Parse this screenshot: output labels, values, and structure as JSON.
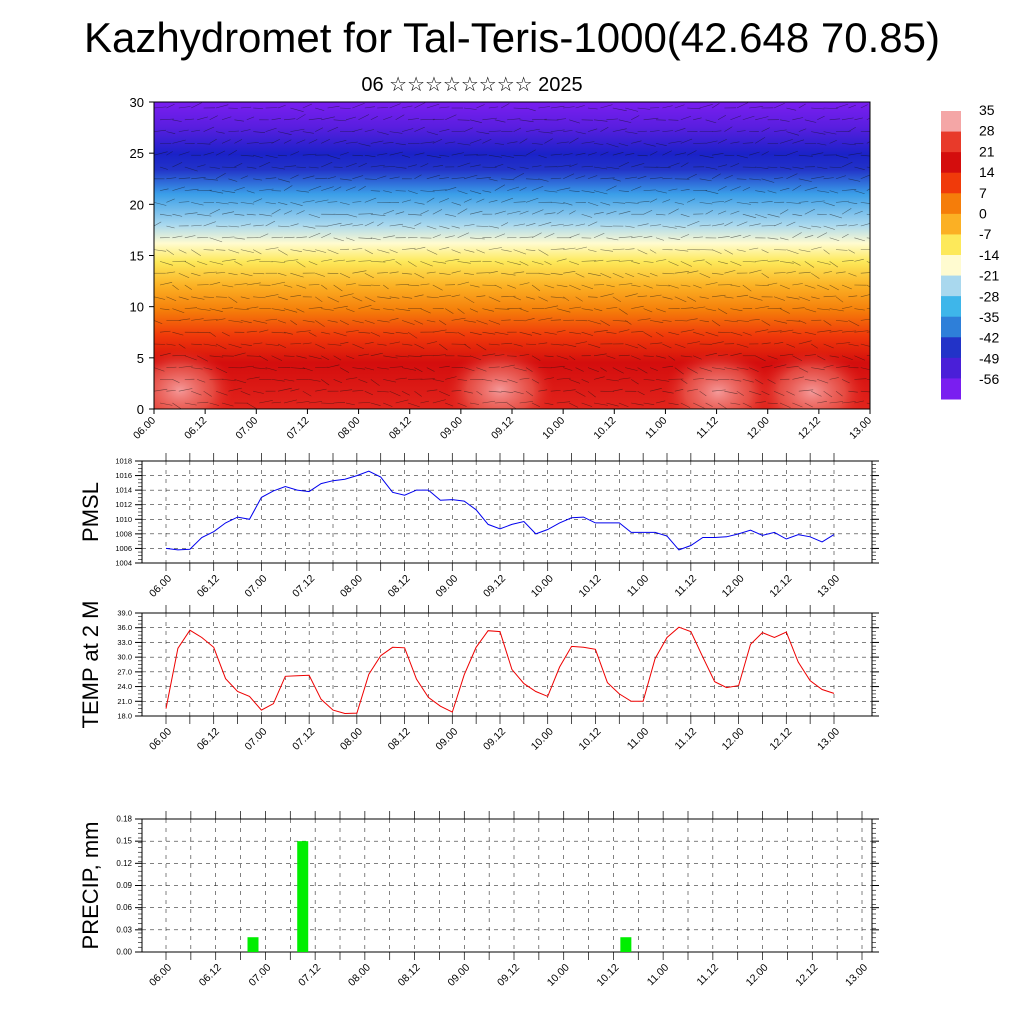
{
  "title": "Kazhydromet for Tal-Teris-1000(42.648 70.85)",
  "subtitle": "06 ☆☆☆☆☆☆☆☆ 2025",
  "time_ticks": [
    "06.00",
    "06.12",
    "07.00",
    "07.12",
    "08.00",
    "08.12",
    "09.00",
    "09.12",
    "10.00",
    "10.12",
    "11.00",
    "11.12",
    "12.00",
    "12.12",
    "13.00"
  ],
  "colorbar": {
    "labels": [
      "35",
      "28",
      "21",
      "14",
      "7",
      "0",
      "-7",
      "-14",
      "-21",
      "-28",
      "-35",
      "-42",
      "-49",
      "-56"
    ],
    "colors": [
      "#f4a6a6",
      "#e83a2a",
      "#d40d0d",
      "#f03a0a",
      "#f57d0a",
      "#fbb024",
      "#fde95a",
      "#fffbd0",
      "#a9d8ee",
      "#3eb6ea",
      "#2e7fd9",
      "#2233c8",
      "#4a1fd8",
      "#7a1ef0"
    ]
  },
  "chart_data": [
    {
      "type": "heatmap",
      "name": "temperature-wind cross-section",
      "ylim": [
        0,
        30
      ],
      "yticks": [
        "0",
        "5",
        "10",
        "15",
        "20",
        "25",
        "30"
      ],
      "x_ticks": [
        "06.00",
        "06.12",
        "07.00",
        "07.12",
        "08.00",
        "08.12",
        "09.00",
        "09.12",
        "10.00",
        "10.12",
        "11.00",
        "11.12",
        "12.00",
        "12.12",
        "13.00"
      ],
      "value_range": [
        -56,
        35
      ]
    },
    {
      "type": "line",
      "ylabel": "PMSL",
      "ylim": [
        1004,
        1018
      ],
      "yticks": [
        "1004",
        "1006",
        "1008",
        "1010",
        "1012",
        "1014",
        "1016",
        "1018"
      ],
      "series_color": "#0000ee",
      "x_ticks": [
        "06.00",
        "06.12",
        "07.00",
        "07.12",
        "08.00",
        "08.12",
        "09.00",
        "09.12",
        "10.00",
        "10.12",
        "11.00",
        "11.12",
        "12.00",
        "12.12",
        "13.00"
      ],
      "values": [
        1006.0,
        1005.8,
        1005.9,
        1007.5,
        1008.3,
        1009.5,
        1010.3,
        1010.0,
        1013.0,
        1013.9,
        1014.5,
        1014.0,
        1013.8,
        1014.9,
        1015.3,
        1015.5,
        1016.0,
        1016.6,
        1015.8,
        1013.7,
        1013.3,
        1014.0,
        1014.0,
        1012.6,
        1012.7,
        1012.5,
        1011.3,
        1009.3,
        1008.7,
        1009.3,
        1009.7,
        1008.0,
        1008.6,
        1009.5,
        1010.2,
        1010.3,
        1009.5,
        1009.5,
        1009.5,
        1008.2,
        1008.2,
        1008.2,
        1007.7,
        1005.8,
        1006.4,
        1007.5,
        1007.5,
        1007.6,
        1008.0,
        1008.5,
        1007.8,
        1008.2,
        1007.3,
        1007.9,
        1007.6,
        1006.9,
        1007.9
      ]
    },
    {
      "type": "line",
      "ylabel": "TEMP at 2 M",
      "ylim": [
        18,
        39
      ],
      "yticks": [
        "18.0",
        "21.0",
        "24.0",
        "27.0",
        "30.0",
        "33.0",
        "36.0",
        "39.0"
      ],
      "series_color": "#ee0000",
      "x_ticks": [
        "06.00",
        "06.12",
        "07.00",
        "07.12",
        "08.00",
        "08.12",
        "09.00",
        "09.12",
        "10.00",
        "10.12",
        "11.00",
        "11.12",
        "12.00",
        "12.12",
        "13.00"
      ],
      "values": [
        19.5,
        31.8,
        35.5,
        34.0,
        32.0,
        25.6,
        23.0,
        22.0,
        19.2,
        20.5,
        26.1,
        26.2,
        26.3,
        21.4,
        19.2,
        18.5,
        18.6,
        26.5,
        30.3,
        32.0,
        31.9,
        25.5,
        21.8,
        20.0,
        18.8,
        26.4,
        32.0,
        35.4,
        35.2,
        27.5,
        24.6,
        23.0,
        22.0,
        28.0,
        32.2,
        32.0,
        31.6,
        24.8,
        22.5,
        21.0,
        21.0,
        29.7,
        34.0,
        36.1,
        35.2,
        30.0,
        25.0,
        23.8,
        24.2,
        32.6,
        35.0,
        34.0,
        35.1,
        29.0,
        25.2,
        23.4,
        22.6
      ]
    },
    {
      "type": "bar",
      "ylabel": "PRECIP, mm",
      "ylim": [
        0,
        0.18
      ],
      "yticks": [
        "0.00",
        "0.03",
        "0.06",
        "0.09",
        "0.12",
        "0.15",
        "0.18"
      ],
      "bar_color": "#00ee00",
      "x_ticks": [
        "06.00",
        "06.12",
        "07.00",
        "07.12",
        "08.00",
        "08.12",
        "09.00",
        "09.12",
        "10.00",
        "10.12",
        "11.00",
        "11.12",
        "12.00",
        "12.12",
        "13.00"
      ],
      "bars": [
        {
          "time_index": 7,
          "value": 0.02
        },
        {
          "time_index": 11,
          "value": 0.15
        },
        {
          "time_index": 37,
          "value": 0.02
        }
      ]
    }
  ]
}
